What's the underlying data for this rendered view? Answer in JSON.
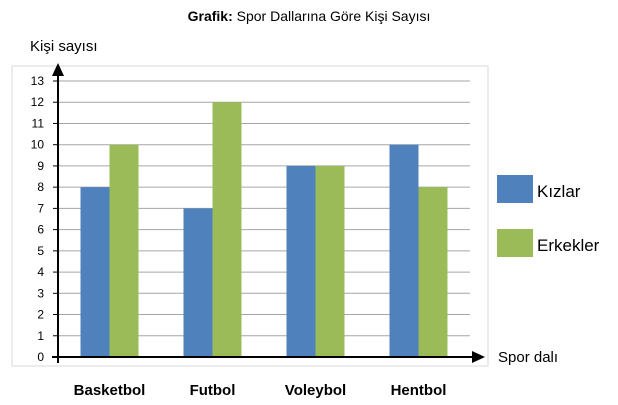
{
  "chart_data": {
    "type": "bar",
    "title_prefix": "Grafik:",
    "title": "Spor Dallarına Göre Kişi Sayısı",
    "ylabel": "Kişi sayısı",
    "xlabel": "Spor dalı",
    "categories": [
      "Basketbol",
      "Futbol",
      "Voleybol",
      "Hentbol"
    ],
    "series": [
      {
        "name": "Kızlar",
        "color": "#4f81bd",
        "values": [
          8,
          7,
          9,
          10
        ]
      },
      {
        "name": "Erkekler",
        "color": "#9bbb59",
        "values": [
          10,
          12,
          9,
          8
        ]
      }
    ],
    "ylim": [
      0,
      13
    ],
    "yticks": [
      0,
      1,
      2,
      3,
      4,
      5,
      6,
      7,
      8,
      9,
      10,
      11,
      12,
      13
    ],
    "grid": true,
    "legend": "right"
  }
}
